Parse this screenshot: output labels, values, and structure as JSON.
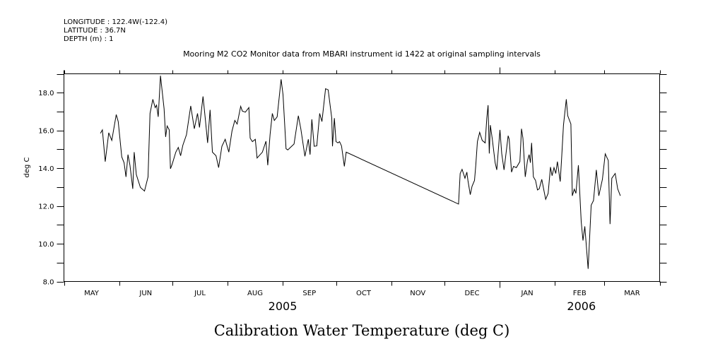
{
  "header": {
    "longitude": "LONGITUDE : 122.4W(-122.4)",
    "latitude": "LATITUDE : 36.7N",
    "depth": "DEPTH (m) : 1"
  },
  "chart_data": {
    "type": "line",
    "title": "Mooring M2 CO2 Monitor data from MBARI instrument id 1422 at original sampling intervals",
    "xlabel": "Calibration Water Temperature (deg C)",
    "ylabel": "deg C",
    "x_unit": "days since 2005-05-01",
    "x_start": "2005-05-01",
    "x_end": "2006-04-01",
    "xlim": [
      0,
      335
    ],
    "ylim": [
      8.0,
      19.0
    ],
    "y_ticks": [
      8.0,
      9.0,
      10.0,
      11.0,
      12.0,
      13.0,
      14.0,
      15.0,
      16.0,
      17.0,
      18.0,
      19.0
    ],
    "y_tick_labels": [
      {
        "value": 8.0,
        "label": "8.0"
      },
      {
        "value": 10.0,
        "label": "10.0"
      },
      {
        "value": 12.0,
        "label": "12.0"
      },
      {
        "value": 14.0,
        "label": "14.0"
      },
      {
        "value": 16.0,
        "label": "16.0"
      },
      {
        "value": 18.0,
        "label": "18.0"
      }
    ],
    "month_boundaries": [
      0,
      31,
      61,
      92,
      123,
      153,
      184,
      214,
      245,
      276,
      304,
      335
    ],
    "month_labels": [
      {
        "label": "MAY",
        "center": 15.5
      },
      {
        "label": "JUN",
        "center": 46
      },
      {
        "label": "JUL",
        "center": 76.5
      },
      {
        "label": "AUG",
        "center": 107.5
      },
      {
        "label": "SEP",
        "center": 138
      },
      {
        "label": "OCT",
        "center": 168.5
      },
      {
        "label": "NOV",
        "center": 199
      },
      {
        "label": "DEC",
        "center": 229.5
      },
      {
        "label": "JAN",
        "center": 260.5
      },
      {
        "label": "FEB",
        "center": 290
      },
      {
        "label": "MAR",
        "center": 319.5
      }
    ],
    "year_boundary": 245,
    "year_labels": [
      {
        "label": "2005",
        "center": 123
      },
      {
        "label": "2006",
        "center": 291
      }
    ],
    "grid": false,
    "legend": "none",
    "series": [
      {
        "name": "Calibration Water Temperature",
        "color": "#000000",
        "x": [
          20.5,
          21.6,
          23.2,
          25.2,
          26.9,
          29.4,
          30.5,
          32.5,
          33.8,
          34.9,
          36.0,
          37.1,
          38.7,
          39.5,
          40.7,
          43.0,
          45.3,
          47.3,
          48.4,
          50.0,
          51.3,
          52.1,
          53.0,
          54.3,
          56.3,
          57.2,
          58.0,
          59.2,
          59.9,
          60.9,
          62.9,
          64.3,
          65.6,
          66.9,
          68.9,
          71.3,
          73.3,
          75.1,
          76.2,
          78.2,
          79.5,
          80.8,
          82.2,
          83.5,
          85.5,
          87.0,
          88.8,
          90.7,
          92.7,
          94.5,
          96.1,
          97.4,
          99.4,
          100.3,
          102.0,
          104.0,
          104.7,
          106.0,
          107.6,
          108.6,
          111.6,
          113.6,
          114.6,
          115.9,
          117.2,
          118.3,
          119.9,
          122.1,
          123.2,
          124.9,
          125.9,
          129.4,
          131.8,
          133.2,
          135.5,
          137.4,
          138.4,
          139.4,
          140.7,
          142.2,
          143.8,
          145.1,
          147.1,
          148.6,
          150.6,
          151.0,
          152.1,
          153.0,
          154.1,
          155.0,
          156.1,
          157.7,
          158.7,
          221.9,
          222.8,
          223.9,
          225.5,
          226.6,
          227.2,
          228.5,
          229.5,
          230.9,
          231.6,
          232.5,
          233.8,
          235.2,
          236.9,
          237.8,
          238.5,
          239.2,
          239.8,
          240.9,
          242.5,
          243.4,
          245.2,
          246.2,
          247.5,
          249.8,
          250.4,
          251.7,
          252.8,
          254.4,
          256.4,
          257.3,
          258.1,
          259.4,
          260.7,
          261.6,
          262.3,
          263.0,
          264.0,
          265.2,
          266.3,
          267.3,
          268.7,
          270.0,
          270.9,
          272.3,
          273.6,
          274.5,
          275.6,
          276.6,
          277.5,
          279.1,
          279.8,
          280.9,
          282.5,
          283.3,
          285.1,
          285.9,
          287.0,
          287.9,
          289.3,
          290.9,
          291.9,
          292.9,
          294.8,
          296.5,
          297.8,
          299.4,
          300.8,
          302.8,
          304.4,
          306.1,
          307.1,
          308.1,
          310.0,
          311.4,
          312.9
        ],
        "y": [
          15.85,
          16.03,
          14.35,
          15.88,
          15.47,
          16.84,
          16.47,
          14.6,
          14.29,
          13.54,
          14.72,
          14.16,
          12.91,
          14.85,
          13.66,
          12.98,
          12.79,
          13.54,
          16.9,
          17.65,
          17.21,
          17.34,
          16.72,
          18.9,
          17.15,
          15.66,
          16.24,
          16.03,
          13.97,
          14.22,
          14.85,
          15.1,
          14.66,
          15.22,
          15.78,
          17.3,
          16.09,
          16.9,
          16.16,
          17.8,
          16.59,
          15.34,
          17.09,
          14.85,
          14.66,
          14.03,
          15.16,
          15.53,
          14.85,
          15.97,
          16.53,
          16.34,
          17.28,
          17.03,
          16.97,
          17.21,
          15.59,
          15.41,
          15.53,
          14.54,
          14.85,
          15.43,
          14.16,
          15.78,
          16.9,
          16.53,
          16.72,
          18.71,
          17.9,
          15.03,
          14.97,
          15.28,
          16.78,
          16.09,
          14.63,
          15.53,
          14.72,
          16.59,
          15.16,
          15.18,
          16.9,
          16.47,
          18.21,
          18.15,
          16.65,
          15.16,
          16.65,
          15.41,
          15.34,
          15.41,
          15.18,
          14.1,
          14.85,
          12.1,
          13.72,
          13.94,
          13.47,
          13.79,
          13.35,
          12.6,
          13.04,
          13.35,
          14.16,
          15.41,
          15.9,
          15.47,
          15.34,
          16.65,
          17.34,
          14.78,
          16.28,
          15.53,
          14.29,
          13.91,
          16.03,
          14.78,
          13.91,
          15.72,
          15.53,
          13.79,
          14.1,
          14.03,
          14.35,
          16.09,
          15.59,
          13.54,
          14.41,
          14.72,
          14.29,
          15.34,
          13.54,
          13.35,
          12.85,
          12.91,
          13.41,
          12.79,
          12.35,
          12.67,
          14.06,
          13.6,
          14.03,
          13.72,
          14.35,
          13.29,
          14.41,
          16.28,
          17.65,
          16.78,
          16.34,
          12.54,
          12.89,
          12.67,
          14.16,
          11.17,
          10.17,
          10.92,
          8.67,
          12.04,
          12.29,
          13.91,
          12.54,
          13.41,
          14.76,
          14.41,
          11.04,
          13.47,
          13.72,
          12.91,
          12.54
        ]
      }
    ]
  }
}
